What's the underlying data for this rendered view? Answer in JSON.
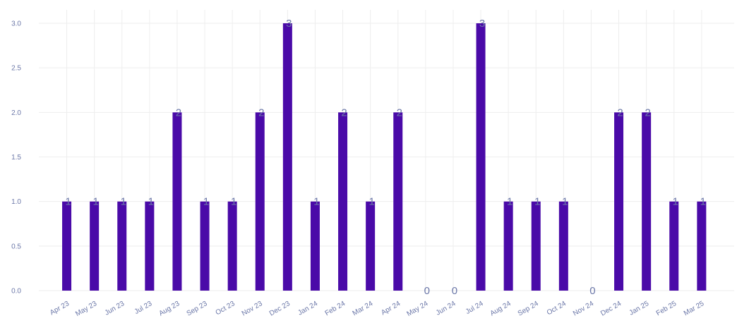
{
  "chart_data": {
    "type": "bar",
    "title": "",
    "xlabel": "",
    "ylabel": "",
    "categories": [
      "Apr 23",
      "May 23",
      "Jun 23",
      "Jul 23",
      "Aug 23",
      "Sep 23",
      "Oct 23",
      "Nov 23",
      "Dec 23",
      "Jan 24",
      "Feb 24",
      "Mar 24",
      "Apr 24",
      "May 24",
      "Jun 24",
      "Jul 24",
      "Aug 24",
      "Sep 24",
      "Oct 24",
      "Nov 24",
      "Dec 24",
      "Jan 25",
      "Feb 25",
      "Mar 25"
    ],
    "values": [
      1,
      1,
      1,
      1,
      2,
      1,
      1,
      2,
      3,
      1,
      2,
      1,
      2,
      0,
      0,
      3,
      1,
      1,
      1,
      0,
      2,
      2,
      1,
      1
    ],
    "ylim": [
      0,
      3
    ],
    "yticks": [
      "0.0",
      "0.5",
      "1.0",
      "1.5",
      "2.0",
      "2.5",
      "3.0"
    ],
    "grid": true,
    "legend": "none",
    "colors": {
      "bar": "#4a0aa8",
      "label": "#6b77a8",
      "grid": "#eeeeee"
    }
  }
}
